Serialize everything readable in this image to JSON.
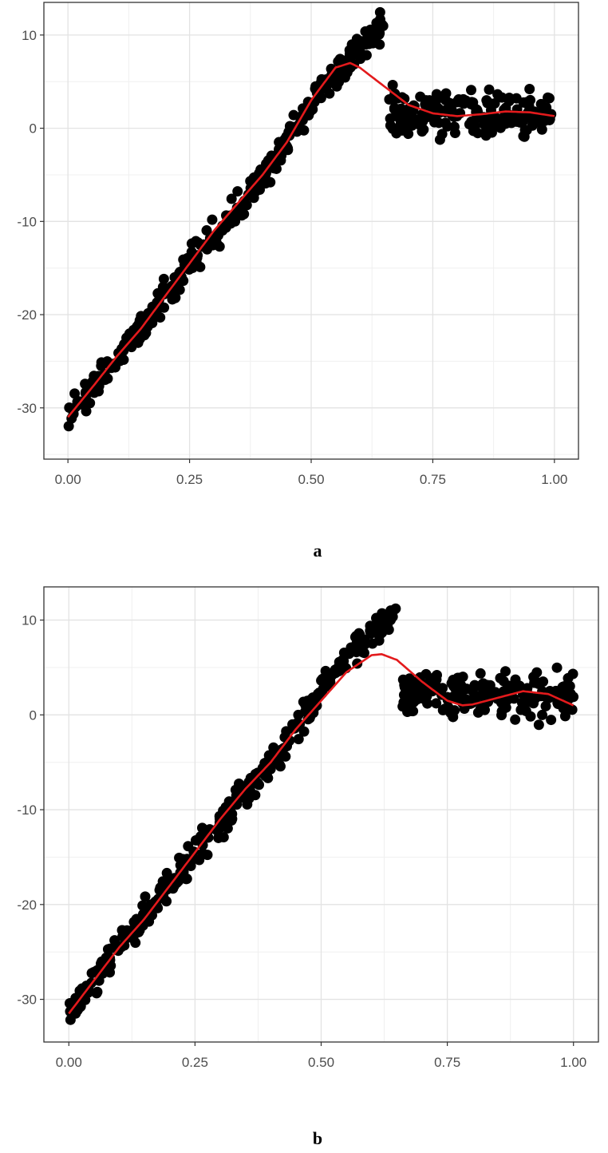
{
  "chart_data": [
    {
      "type": "scatter",
      "caption": "a",
      "xlim": [
        0,
        1
      ],
      "ylim": [
        -35.5,
        13.5
      ],
      "x_ticks": [
        0,
        0.25,
        0.5,
        0.75,
        1
      ],
      "x_tick_labels": [
        "0.00",
        "0.25",
        "0.50",
        "0.75",
        "1.00"
      ],
      "y_ticks": [
        -30,
        -20,
        -10,
        0,
        10
      ],
      "y_tick_labels": [
        "-30",
        "-20",
        "-10",
        "0",
        "10"
      ],
      "grid": true,
      "legend": "none",
      "colors": {
        "points": "#000000",
        "fit_line": "#e31a1c"
      },
      "points_band": {
        "trend_x": [
          0.0,
          0.05,
          0.1,
          0.15,
          0.2,
          0.25,
          0.3,
          0.35,
          0.4,
          0.45,
          0.5,
          0.55,
          0.6,
          0.65
        ],
        "trend_y": [
          -31.5,
          -28.0,
          -24.5,
          -21.5,
          -18.0,
          -14.5,
          -11.5,
          -8.5,
          -5.0,
          -1.5,
          2.5,
          6.0,
          8.5,
          11.0
        ],
        "jump_to": {
          "x_range": [
            0.66,
            1.0
          ],
          "center": 1.5,
          "spread": 3.0
        },
        "count": 520
      },
      "fit_line": {
        "x": [
          0.0,
          0.05,
          0.1,
          0.15,
          0.2,
          0.25,
          0.3,
          0.35,
          0.4,
          0.45,
          0.5,
          0.55,
          0.58,
          0.6,
          0.65,
          0.7,
          0.75,
          0.8,
          0.85,
          0.9,
          0.95,
          1.0
        ],
        "y": [
          -31.0,
          -27.8,
          -24.5,
          -21.5,
          -18.0,
          -14.5,
          -11.0,
          -8.0,
          -5.0,
          -1.5,
          3.0,
          6.5,
          7.0,
          6.5,
          4.5,
          2.5,
          1.6,
          1.3,
          1.5,
          1.8,
          1.7,
          1.3
        ]
      }
    },
    {
      "type": "scatter",
      "caption": "b",
      "xlim": [
        0,
        1
      ],
      "ylim": [
        -34.5,
        13.5
      ],
      "x_ticks": [
        0,
        0.25,
        0.5,
        0.75,
        1
      ],
      "x_tick_labels": [
        "0.00",
        "0.25",
        "0.50",
        "0.75",
        "1.00"
      ],
      "y_ticks": [
        -30,
        -20,
        -10,
        0,
        10
      ],
      "y_tick_labels": [
        "-30",
        "-20",
        "-10",
        "0",
        "10"
      ],
      "grid": true,
      "legend": "none",
      "colors": {
        "points": "#000000",
        "fit_line": "#e31a1c"
      },
      "points_band": {
        "trend_x": [
          0.0,
          0.05,
          0.1,
          0.15,
          0.2,
          0.25,
          0.3,
          0.35,
          0.4,
          0.45,
          0.5,
          0.55,
          0.6,
          0.65
        ],
        "trend_y": [
          -31.5,
          -28.0,
          -24.5,
          -21.0,
          -18.0,
          -14.5,
          -11.5,
          -8.0,
          -5.0,
          -1.5,
          2.5,
          6.0,
          8.5,
          11.0
        ],
        "jump_to": {
          "x_range": [
            0.66,
            1.0
          ],
          "center": 2.0,
          "spread": 3.0
        },
        "count": 520
      },
      "fit_line": {
        "x": [
          0.0,
          0.05,
          0.1,
          0.15,
          0.2,
          0.25,
          0.3,
          0.35,
          0.4,
          0.45,
          0.5,
          0.55,
          0.6,
          0.62,
          0.65,
          0.7,
          0.75,
          0.78,
          0.8,
          0.85,
          0.9,
          0.95,
          1.0
        ],
        "y": [
          -31.5,
          -28.0,
          -24.5,
          -21.5,
          -18.0,
          -14.5,
          -11.0,
          -7.8,
          -5.0,
          -1.5,
          1.5,
          4.5,
          6.3,
          6.4,
          5.8,
          3.5,
          1.5,
          1.0,
          1.1,
          1.8,
          2.5,
          2.2,
          1.0
        ]
      }
    }
  ]
}
